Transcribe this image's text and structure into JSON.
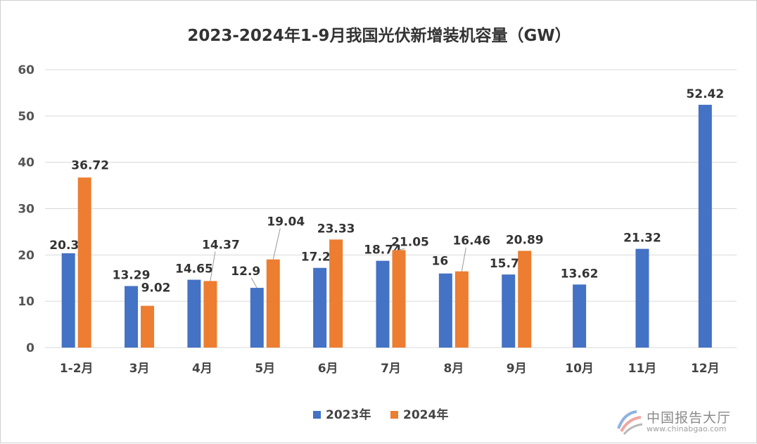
{
  "chart_data": {
    "type": "bar",
    "title": "2023-2024年1-9月我国光伏新增装机容量（GW）",
    "categories": [
      "1-2月",
      "3月",
      "4月",
      "5月",
      "6月",
      "7月",
      "8月",
      "9月",
      "10月",
      "11月",
      "12月"
    ],
    "series": [
      {
        "name": "2023年",
        "color": "#4472C4",
        "values": [
          20.37,
          13.29,
          14.65,
          12.9,
          17.21,
          18.74,
          16,
          15.78,
          13.62,
          21.32,
          52.42
        ],
        "labels": [
          "20.37",
          "13.29",
          "14.65",
          "12.9",
          "17.21",
          "18.74",
          "16",
          "15.78",
          "13.62",
          "21.32",
          "52.42"
        ]
      },
      {
        "name": "2024年",
        "color": "#ED7D31",
        "values": [
          36.72,
          9.02,
          14.37,
          19.04,
          23.33,
          21.05,
          16.46,
          20.89,
          null,
          null,
          null
        ],
        "labels": [
          "36.72",
          "9.02",
          "14.37",
          "19.04",
          "23.33",
          "21.05",
          "16.46",
          "20.89",
          null,
          null,
          null
        ]
      }
    ],
    "ylim": [
      0,
      60
    ],
    "yticks": [
      0,
      10,
      20,
      30,
      40,
      50,
      60
    ],
    "grid": true,
    "legend": "bottom"
  },
  "watermark": {
    "name": "中国报告大厅",
    "url": "www.chinabgao.com",
    "icon": "chinabgao-logo-icon"
  }
}
